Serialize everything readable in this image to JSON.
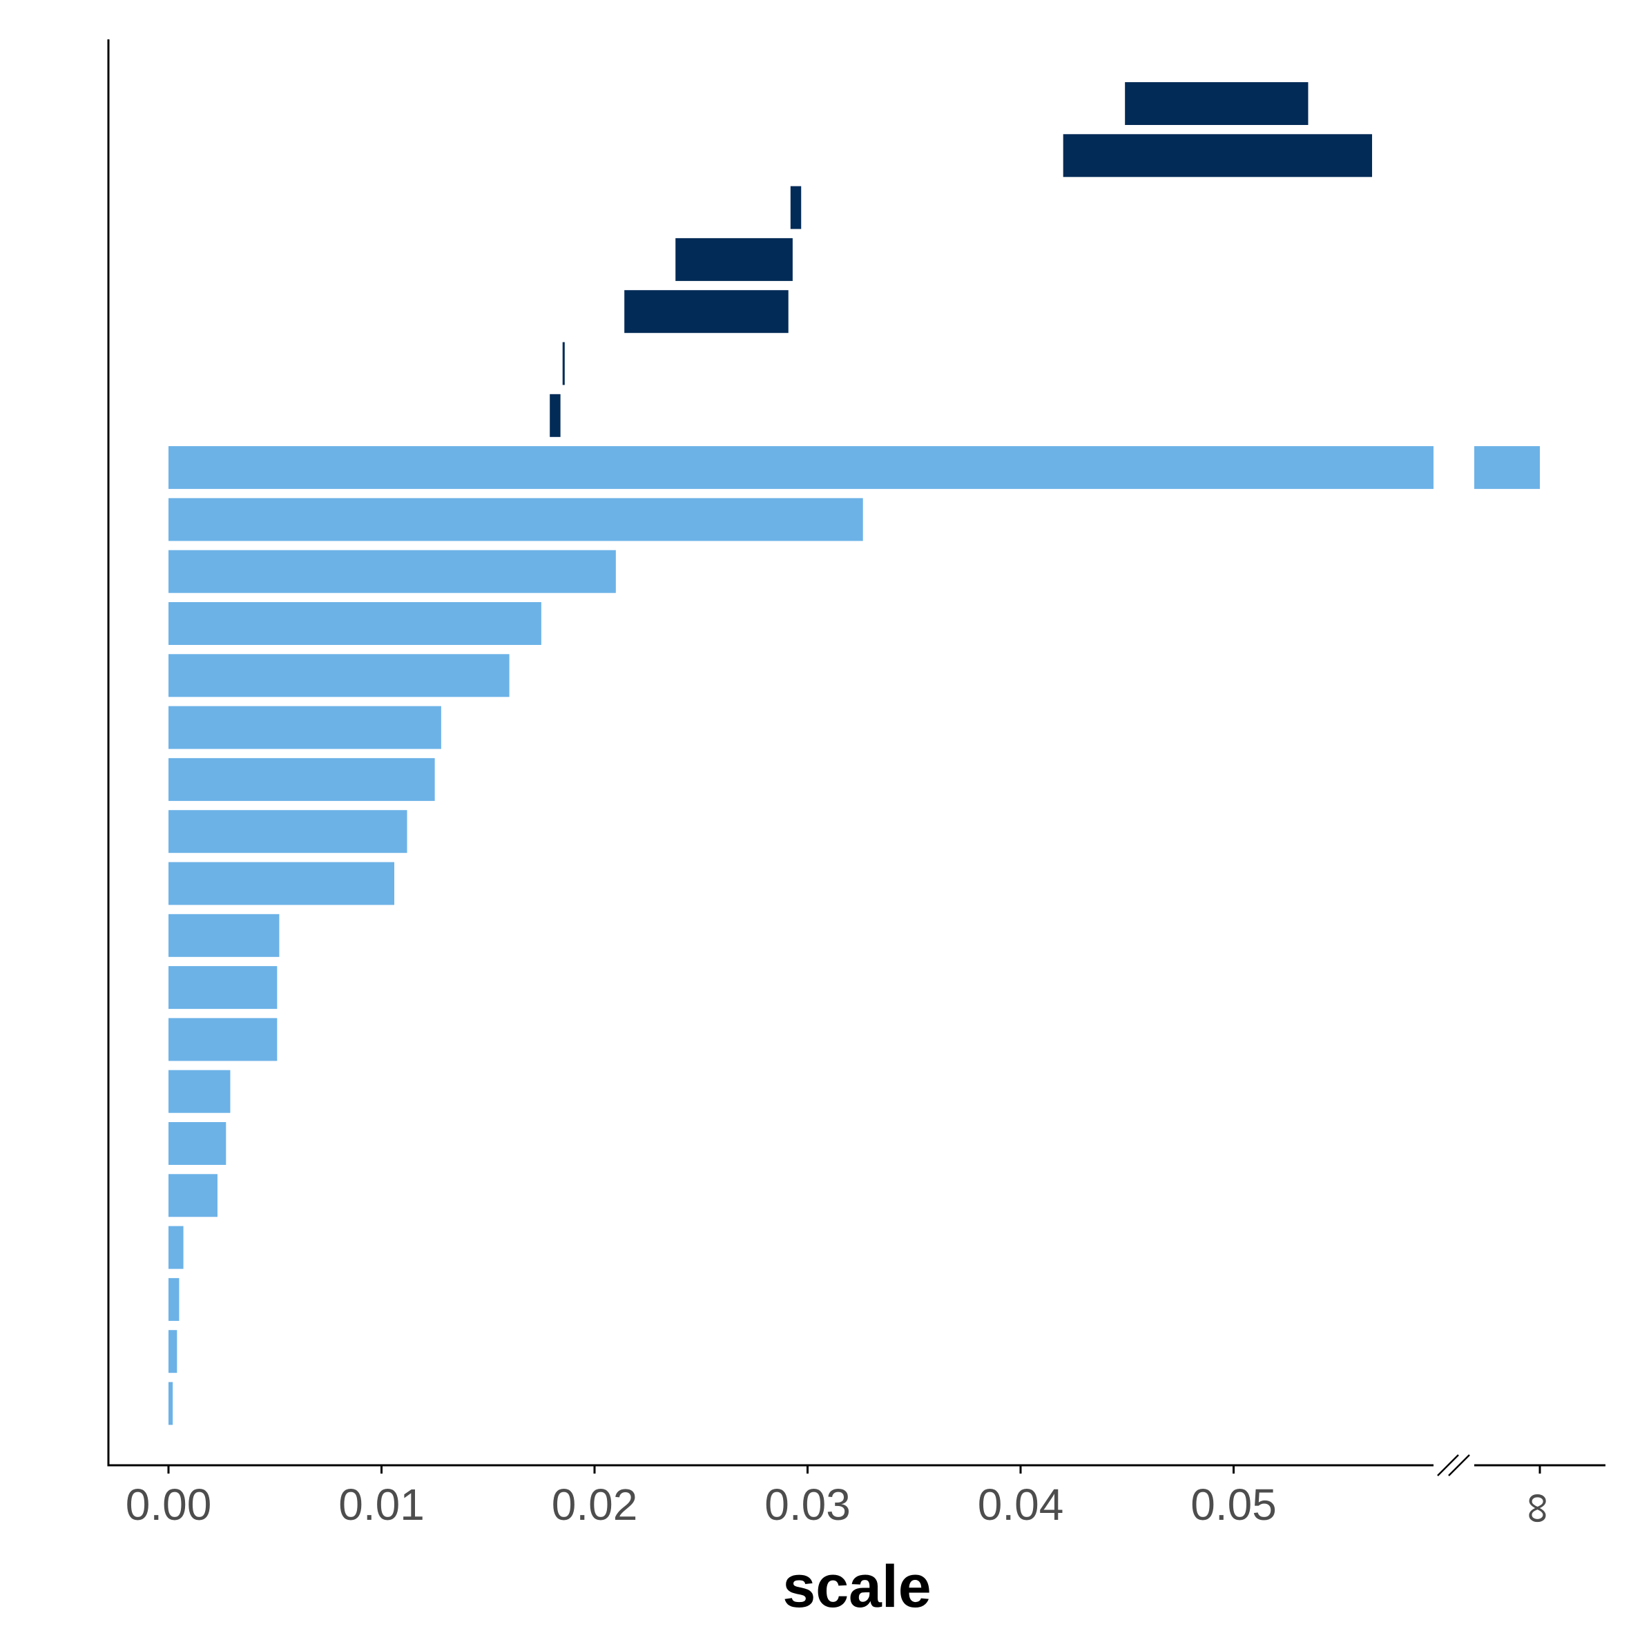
{
  "chart_data": {
    "type": "bar",
    "orientation": "horizontal",
    "xlabel": "scale",
    "ylabel": "",
    "xlim": [
      -0.0028,
      0.0669
    ],
    "axis_break": {
      "between": 0.0595,
      "and": "∞"
    },
    "x_ticks": [
      {
        "value": 0.0,
        "label": "0.00"
      },
      {
        "value": 0.01,
        "label": "0.01"
      },
      {
        "value": 0.02,
        "label": "0.02"
      },
      {
        "value": 0.03,
        "label": "0.03"
      },
      {
        "value": 0.04,
        "label": "0.04"
      },
      {
        "value": 0.05,
        "label": "0.05"
      },
      {
        "value": "inf",
        "label": "∞"
      }
    ],
    "colors": {
      "interval": "#032b57",
      "bar": "#6cb2e7",
      "axis": "#000000"
    },
    "grid": false,
    "legend": "none",
    "intervals": [
      {
        "from": 0.0449,
        "to": 0.0535
      },
      {
        "from": 0.042,
        "to": 0.0565
      },
      {
        "from": 0.0292,
        "to": 0.0297
      },
      {
        "from": 0.0238,
        "to": 0.0293
      },
      {
        "from": 0.0214,
        "to": 0.0291
      },
      {
        "from": 0.0185,
        "to": 0.0186
      },
      {
        "from": 0.0179,
        "to": 0.0184
      }
    ],
    "bars": [
      {
        "value": "inf"
      },
      {
        "value": 0.0326
      },
      {
        "value": 0.021
      },
      {
        "value": 0.0175
      },
      {
        "value": 0.016
      },
      {
        "value": 0.0128
      },
      {
        "value": 0.0125
      },
      {
        "value": 0.0112
      },
      {
        "value": 0.0106
      },
      {
        "value": 0.0052
      },
      {
        "value": 0.0051
      },
      {
        "value": 0.0051
      },
      {
        "value": 0.0029
      },
      {
        "value": 0.0027
      },
      {
        "value": 0.0023
      },
      {
        "value": 0.0007
      },
      {
        "value": 0.0005
      },
      {
        "value": 0.0004
      },
      {
        "value": 0.0002
      }
    ]
  }
}
